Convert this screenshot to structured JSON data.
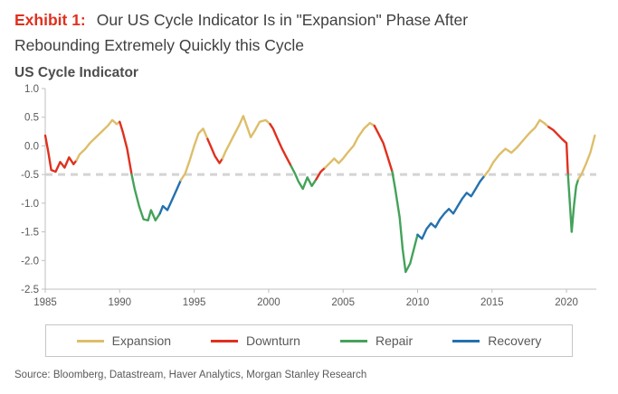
{
  "header": {
    "exhibit_label": "Exhibit 1:",
    "title_line1": "Our US Cycle Indicator Is in \"Expansion\" Phase After",
    "title_line2": "Rebounding Extremely Quickly this Cycle",
    "chart_heading": "US Cycle Indicator"
  },
  "source": "Source: Bloomberg, Datastream, Haver Analytics, Morgan Stanley Research",
  "colors": {
    "expansion": "#DDBE69",
    "downturn": "#E0301E",
    "repair": "#44A25B",
    "recovery": "#2471AE",
    "threshold": "#D4D4D4",
    "axis": "#BFBFBF",
    "axis_text": "#595959",
    "exhibit_red": "#E0301E"
  },
  "chart_data": {
    "type": "line",
    "title": "US Cycle Indicator",
    "xlabel": "",
    "ylabel": "",
    "x_range": [
      1985,
      2022
    ],
    "y_range": [
      -2.5,
      1.0
    ],
    "x_ticks": [
      1985,
      1990,
      1995,
      2000,
      2005,
      2010,
      2015,
      2020
    ],
    "y_ticks": [
      1.0,
      0.5,
      0.0,
      -0.5,
      -1.0,
      -1.5,
      -2.0,
      -2.5
    ],
    "threshold": -0.5,
    "legend": [
      {
        "label": "Expansion",
        "key": "expansion"
      },
      {
        "label": "Downturn",
        "key": "downturn"
      },
      {
        "label": "Repair",
        "key": "repair"
      },
      {
        "label": "Recovery",
        "key": "recovery"
      }
    ],
    "points": [
      [
        1985.0,
        0.18,
        "downturn"
      ],
      [
        1985.2,
        -0.1,
        "downturn"
      ],
      [
        1985.4,
        -0.42,
        "downturn"
      ],
      [
        1985.7,
        -0.45,
        "downturn"
      ],
      [
        1986.0,
        -0.28,
        "downturn"
      ],
      [
        1986.3,
        -0.38,
        "downturn"
      ],
      [
        1986.6,
        -0.2,
        "downturn"
      ],
      [
        1986.9,
        -0.32,
        "downturn"
      ],
      [
        1987.1,
        -0.25,
        "downturn"
      ],
      [
        1987.3,
        -0.15,
        "expansion"
      ],
      [
        1987.7,
        -0.05,
        "expansion"
      ],
      [
        1988.0,
        0.05,
        "expansion"
      ],
      [
        1988.4,
        0.15,
        "expansion"
      ],
      [
        1988.8,
        0.25,
        "expansion"
      ],
      [
        1989.2,
        0.35,
        "expansion"
      ],
      [
        1989.5,
        0.45,
        "expansion"
      ],
      [
        1989.8,
        0.38,
        "expansion"
      ],
      [
        1990.0,
        0.42,
        "expansion"
      ],
      [
        1990.2,
        0.25,
        "downturn"
      ],
      [
        1990.5,
        -0.05,
        "downturn"
      ],
      [
        1990.8,
        -0.5,
        "downturn"
      ],
      [
        1991.0,
        -0.75,
        "repair"
      ],
      [
        1991.3,
        -1.05,
        "repair"
      ],
      [
        1991.6,
        -1.28,
        "repair"
      ],
      [
        1991.9,
        -1.3,
        "repair"
      ],
      [
        1992.1,
        -1.12,
        "repair"
      ],
      [
        1992.4,
        -1.3,
        "repair"
      ],
      [
        1992.7,
        -1.18,
        "repair"
      ],
      [
        1992.9,
        -1.05,
        "recovery"
      ],
      [
        1993.2,
        -1.12,
        "recovery"
      ],
      [
        1993.5,
        -0.95,
        "recovery"
      ],
      [
        1993.8,
        -0.78,
        "recovery"
      ],
      [
        1994.1,
        -0.6,
        "recovery"
      ],
      [
        1994.4,
        -0.48,
        "expansion"
      ],
      [
        1994.7,
        -0.25,
        "expansion"
      ],
      [
        1995.0,
        0.0,
        "expansion"
      ],
      [
        1995.3,
        0.22,
        "expansion"
      ],
      [
        1995.6,
        0.3,
        "expansion"
      ],
      [
        1995.9,
        0.12,
        "expansion"
      ],
      [
        1996.1,
        0.0,
        "downturn"
      ],
      [
        1996.4,
        -0.18,
        "downturn"
      ],
      [
        1996.7,
        -0.3,
        "downturn"
      ],
      [
        1996.9,
        -0.22,
        "downturn"
      ],
      [
        1997.1,
        -0.1,
        "expansion"
      ],
      [
        1997.4,
        0.05,
        "expansion"
      ],
      [
        1997.7,
        0.2,
        "expansion"
      ],
      [
        1998.0,
        0.35,
        "expansion"
      ],
      [
        1998.3,
        0.52,
        "expansion"
      ],
      [
        1998.6,
        0.3,
        "expansion"
      ],
      [
        1998.8,
        0.15,
        "expansion"
      ],
      [
        1999.1,
        0.28,
        "expansion"
      ],
      [
        1999.4,
        0.42,
        "expansion"
      ],
      [
        1999.8,
        0.45,
        "expansion"
      ],
      [
        2000.1,
        0.38,
        "expansion"
      ],
      [
        2000.3,
        0.3,
        "downturn"
      ],
      [
        2000.6,
        0.12,
        "downturn"
      ],
      [
        2000.9,
        -0.05,
        "downturn"
      ],
      [
        2001.2,
        -0.2,
        "downturn"
      ],
      [
        2001.5,
        -0.35,
        "downturn"
      ],
      [
        2001.8,
        -0.5,
        "repair"
      ],
      [
        2002.0,
        -0.62,
        "repair"
      ],
      [
        2002.3,
        -0.75,
        "repair"
      ],
      [
        2002.6,
        -0.55,
        "repair"
      ],
      [
        2002.9,
        -0.7,
        "repair"
      ],
      [
        2003.2,
        -0.58,
        "repair"
      ],
      [
        2003.5,
        -0.45,
        "downturn"
      ],
      [
        2003.8,
        -0.38,
        "downturn"
      ],
      [
        2004.1,
        -0.3,
        "expansion"
      ],
      [
        2004.4,
        -0.22,
        "expansion"
      ],
      [
        2004.7,
        -0.3,
        "expansion"
      ],
      [
        2005.0,
        -0.22,
        "expansion"
      ],
      [
        2005.3,
        -0.12,
        "expansion"
      ],
      [
        2005.7,
        0.0,
        "expansion"
      ],
      [
        2006.0,
        0.15,
        "expansion"
      ],
      [
        2006.4,
        0.3,
        "expansion"
      ],
      [
        2006.8,
        0.4,
        "expansion"
      ],
      [
        2007.1,
        0.35,
        "expansion"
      ],
      [
        2007.4,
        0.2,
        "downturn"
      ],
      [
        2007.7,
        0.05,
        "downturn"
      ],
      [
        2008.0,
        -0.2,
        "downturn"
      ],
      [
        2008.3,
        -0.45,
        "downturn"
      ],
      [
        2008.5,
        -0.75,
        "repair"
      ],
      [
        2008.8,
        -1.25,
        "repair"
      ],
      [
        2009.0,
        -1.8,
        "repair"
      ],
      [
        2009.2,
        -2.2,
        "repair"
      ],
      [
        2009.5,
        -2.05,
        "repair"
      ],
      [
        2009.8,
        -1.75,
        "repair"
      ],
      [
        2010.0,
        -1.55,
        "repair"
      ],
      [
        2010.3,
        -1.62,
        "recovery"
      ],
      [
        2010.6,
        -1.45,
        "recovery"
      ],
      [
        2010.9,
        -1.35,
        "recovery"
      ],
      [
        2011.2,
        -1.42,
        "recovery"
      ],
      [
        2011.5,
        -1.28,
        "recovery"
      ],
      [
        2011.8,
        -1.18,
        "recovery"
      ],
      [
        2012.1,
        -1.1,
        "recovery"
      ],
      [
        2012.4,
        -1.18,
        "recovery"
      ],
      [
        2012.7,
        -1.05,
        "recovery"
      ],
      [
        2013.0,
        -0.92,
        "recovery"
      ],
      [
        2013.3,
        -0.82,
        "recovery"
      ],
      [
        2013.6,
        -0.88,
        "recovery"
      ],
      [
        2013.9,
        -0.75,
        "recovery"
      ],
      [
        2014.2,
        -0.62,
        "recovery"
      ],
      [
        2014.5,
        -0.52,
        "recovery"
      ],
      [
        2014.8,
        -0.42,
        "expansion"
      ],
      [
        2015.1,
        -0.28,
        "expansion"
      ],
      [
        2015.5,
        -0.15,
        "expansion"
      ],
      [
        2015.9,
        -0.05,
        "expansion"
      ],
      [
        2016.3,
        -0.12,
        "expansion"
      ],
      [
        2016.7,
        -0.02,
        "expansion"
      ],
      [
        2017.1,
        0.1,
        "expansion"
      ],
      [
        2017.5,
        0.22,
        "expansion"
      ],
      [
        2017.9,
        0.32,
        "expansion"
      ],
      [
        2018.2,
        0.45,
        "expansion"
      ],
      [
        2018.5,
        0.4,
        "expansion"
      ],
      [
        2018.8,
        0.33,
        "expansion"
      ],
      [
        2019.1,
        0.28,
        "downturn"
      ],
      [
        2019.4,
        0.2,
        "downturn"
      ],
      [
        2019.7,
        0.12,
        "downturn"
      ],
      [
        2020.0,
        0.05,
        "downturn"
      ],
      [
        2020.1,
        -0.5,
        "downturn"
      ],
      [
        2020.25,
        -1.1,
        "repair"
      ],
      [
        2020.35,
        -1.5,
        "repair"
      ],
      [
        2020.5,
        -1.05,
        "repair"
      ],
      [
        2020.65,
        -0.7,
        "repair"
      ],
      [
        2020.8,
        -0.58,
        "repair"
      ],
      [
        2021.0,
        -0.5,
        "expansion"
      ],
      [
        2021.3,
        -0.32,
        "expansion"
      ],
      [
        2021.6,
        -0.12,
        "expansion"
      ],
      [
        2021.9,
        0.18,
        "expansion"
      ]
    ]
  }
}
